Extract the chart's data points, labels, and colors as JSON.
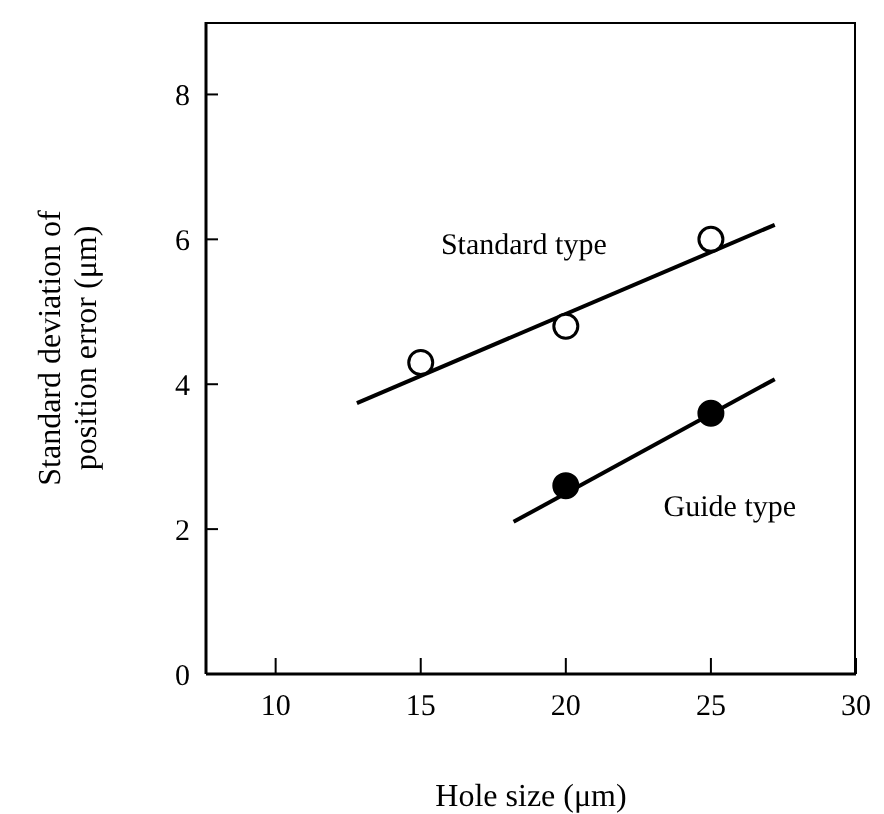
{
  "chart_data": {
    "type": "scatter",
    "xlabel": "Hole size (μm)",
    "ylabel": "Standard deviation of position error (μm)",
    "xlim": [
      7.6,
      30
    ],
    "xticks": [
      10,
      15,
      20,
      25,
      30
    ],
    "ylim": [
      0,
      9
    ],
    "yticks": [
      0,
      2,
      4,
      6,
      8
    ],
    "grid": false,
    "legend": false,
    "series": [
      {
        "name": "Standard type",
        "marker": "circle",
        "color": "#000000",
        "x": [
          15,
          20,
          25
        ],
        "values": [
          4.3,
          4.8,
          6.0
        ]
      },
      {
        "name": "Guide type",
        "marker": "circle",
        "color": "#000000",
        "x": [
          20,
          25
        ],
        "values": [
          2.6,
          3.6
        ]
      },
      {
        "type": "line",
        "color": "#000000",
        "x": [
          12.8,
          27.2
        ],
        "values": [
          3.74,
          6.2
        ]
      },
      {
        "type": "line",
        "color": "#000000",
        "x": [
          18.2,
          27.2
        ],
        "values": [
          2.1,
          4.07
        ]
      }
    ]
  }
}
